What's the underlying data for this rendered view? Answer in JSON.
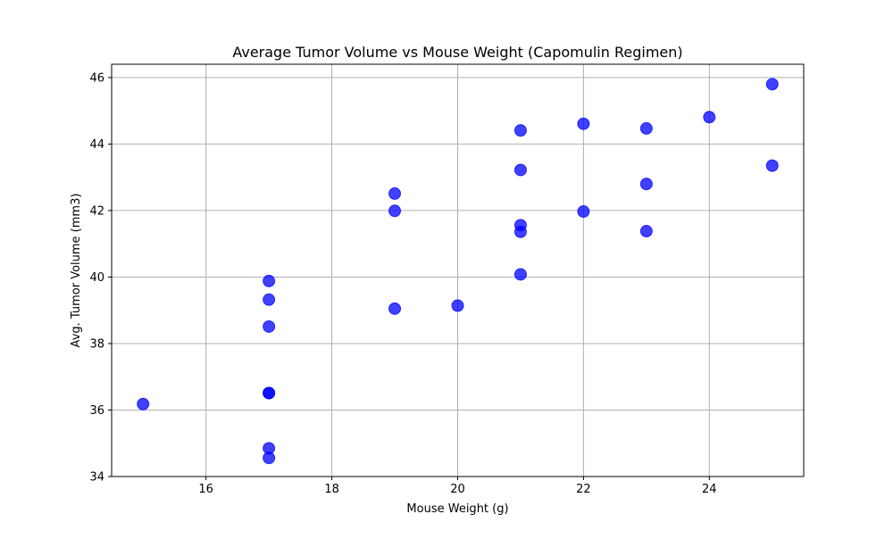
{
  "chart_data": {
    "type": "scatter",
    "title": "Average Tumor Volume vs Mouse Weight (Capomulin Regimen)",
    "xlabel": "Mouse Weight (g)",
    "ylabel": "Avg. Tumor Volume (mm3)",
    "xlim": [
      14.5,
      25.5
    ],
    "ylim": [
      34,
      46.4
    ],
    "x_ticks": [
      16,
      18,
      20,
      22,
      24
    ],
    "y_ticks": [
      34,
      36,
      38,
      40,
      42,
      44,
      46
    ],
    "grid": true,
    "marker_color": "#0000ff",
    "points": [
      {
        "x": 15,
        "y": 36.18
      },
      {
        "x": 17,
        "y": 39.88
      },
      {
        "x": 17,
        "y": 39.32
      },
      {
        "x": 17,
        "y": 38.51
      },
      {
        "x": 17,
        "y": 36.51
      },
      {
        "x": 17,
        "y": 36.51
      },
      {
        "x": 17,
        "y": 34.85
      },
      {
        "x": 17,
        "y": 34.56
      },
      {
        "x": 19,
        "y": 42.51
      },
      {
        "x": 19,
        "y": 41.99
      },
      {
        "x": 19,
        "y": 39.05
      },
      {
        "x": 20,
        "y": 39.14
      },
      {
        "x": 21,
        "y": 44.41
      },
      {
        "x": 21,
        "y": 43.22
      },
      {
        "x": 21,
        "y": 41.56
      },
      {
        "x": 21,
        "y": 41.36
      },
      {
        "x": 21,
        "y": 40.08
      },
      {
        "x": 22,
        "y": 44.61
      },
      {
        "x": 22,
        "y": 41.97
      },
      {
        "x": 23,
        "y": 44.47
      },
      {
        "x": 23,
        "y": 42.8
      },
      {
        "x": 23,
        "y": 41.38
      },
      {
        "x": 24,
        "y": 44.81
      },
      {
        "x": 25,
        "y": 45.8
      },
      {
        "x": 25,
        "y": 43.35
      }
    ]
  }
}
